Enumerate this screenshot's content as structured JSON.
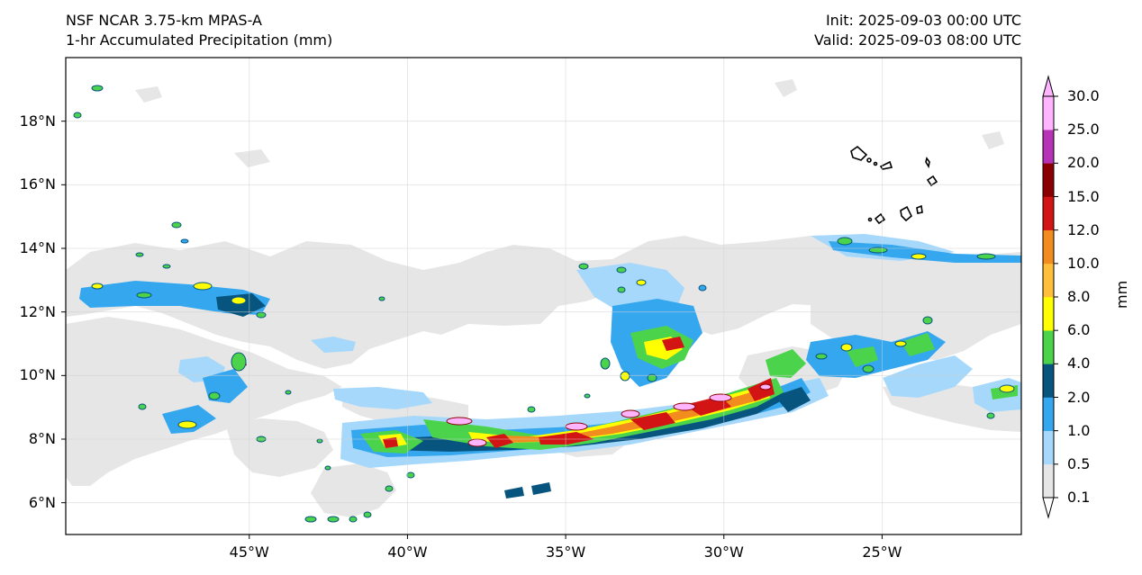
{
  "header": {
    "model": "NSF NCAR 3.75-km MPAS-A",
    "field": "1-hr Accumulated Precipitation (mm)",
    "init": "Init: 2025-09-03 00:00 UTC",
    "valid": "Valid: 2025-09-03 08:00 UTC"
  },
  "map": {
    "lon_range": [
      -50.8,
      -20.6
    ],
    "lat_range": [
      5.0,
      20.0
    ],
    "lat_ticks": [
      "18°N",
      "16°N",
      "14°N",
      "12°N",
      "10°N",
      "8°N",
      "6°N"
    ],
    "lon_ticks": [
      "45°W",
      "40°W",
      "35°W",
      "30°W",
      "25°W"
    ],
    "grid": true,
    "land_outline": "Cabo Verde islands"
  },
  "colorbar": {
    "label": "mm",
    "levels": [
      "0.1",
      "0.5",
      "1.0",
      "2.0",
      "4.0",
      "6.0",
      "8.0",
      "10.0",
      "12.0",
      "15.0",
      "20.0",
      "25.0",
      "30.0"
    ],
    "colors": [
      "#e6e6e6",
      "#a6d8fb",
      "#35a7ef",
      "#07557e",
      "#4cd34c",
      "#ffff00",
      "#ffbf3a",
      "#f28c1e",
      "#d21414",
      "#8b0000",
      "#b632b6",
      "#ffb4ff"
    ],
    "extend": "both"
  },
  "colors": {
    "light": "#e6e6e6",
    "pale_blue": "#a6d8fb",
    "blue": "#35a7ef",
    "dark_blue": "#07557e",
    "green": "#4cd34c",
    "yellow": "#ffff00",
    "orange": "#f28c1e",
    "red": "#d21414",
    "dark_red": "#8b0000",
    "pink": "#ffb4ff"
  }
}
